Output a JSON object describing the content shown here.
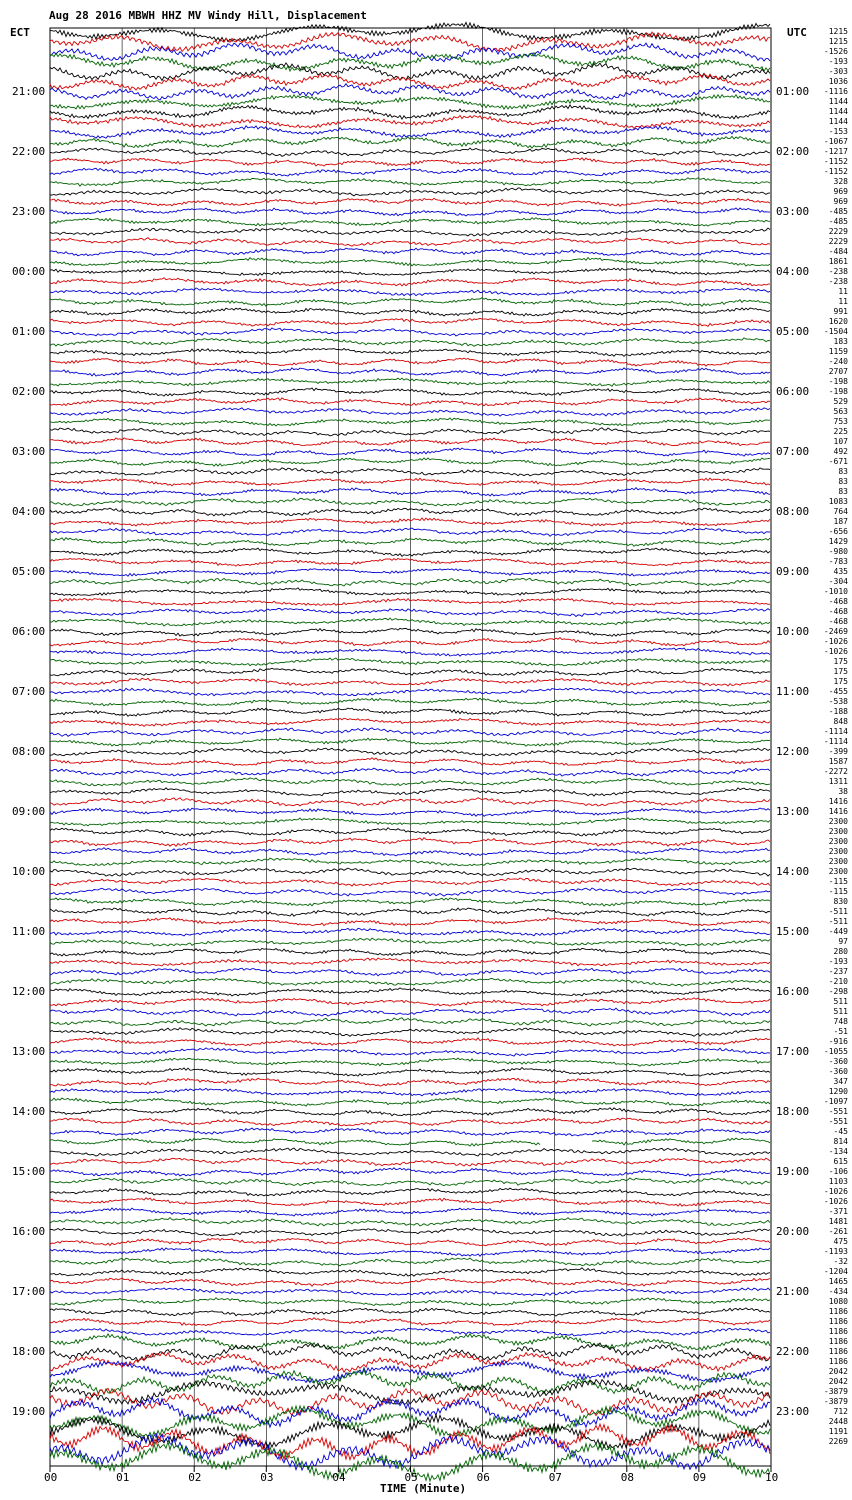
{
  "title": "Aug 28 2016 MBWH HHZ MV Windy Hill, Displacement",
  "left_timezone": "ECT",
  "right_timezone": "UTC",
  "x_axis_title": "TIME (Minute)",
  "colors": {
    "trace_cycle": [
      "#000000",
      "#d80000",
      "#0000d8",
      "#006400"
    ],
    "grid": "#000000"
  },
  "chart_data": {
    "type": "line",
    "title": "Aug 28 2016 MBWH HHZ MV Windy Hill, Displacement",
    "xlabel": "TIME (Minute)",
    "ylabel": "",
    "x_range": [
      0,
      10
    ],
    "x_ticks": [
      "00",
      "01",
      "02",
      "03",
      "04",
      "05",
      "06",
      "07",
      "08",
      "09",
      "10"
    ],
    "traces_per_hour": 6,
    "trace_count": 144,
    "data_gap_trace_index": 111,
    "left_hour_labels": [
      "21:00",
      "22:00",
      "23:00",
      "00:00",
      "01:00",
      "02:00",
      "03:00",
      "04:00",
      "05:00",
      "06:00",
      "07:00",
      "08:00",
      "09:00",
      "10:00",
      "11:00",
      "12:00",
      "13:00",
      "14:00",
      "15:00",
      "16:00",
      "17:00",
      "18:00",
      "19:00"
    ],
    "right_hour_labels": [
      "01:00",
      "02:00",
      "03:00",
      "04:00",
      "05:00",
      "06:00",
      "07:00",
      "08:00",
      "09:00",
      "10:00",
      "11:00",
      "12:00",
      "13:00",
      "14:00",
      "15:00",
      "16:00",
      "17:00",
      "18:00",
      "19:00",
      "20:00",
      "21:00",
      "22:00",
      "23:00"
    ],
    "right_values": [
      "1215",
      "1215",
      "-1526",
      "-193",
      "-303",
      "1036",
      "-1116",
      "1144",
      "1144",
      "1144",
      "-153",
      "-1067",
      "-1217",
      "-1152",
      "-1152",
      "328",
      "969",
      "969",
      "-485",
      "-485",
      "2229",
      "2229",
      "-484",
      "1861",
      "-238",
      "-238",
      "11",
      "11",
      "991",
      "1620",
      "-1504",
      "183",
      "1159",
      "-240",
      "2707",
      "-198",
      "-198",
      "529",
      "563",
      "753",
      "225",
      "107",
      "492",
      "-671",
      "83",
      "83",
      "83",
      "1083",
      "764",
      "187",
      "-656",
      "1429",
      "-980",
      "-783",
      "435",
      "-304",
      "-1010",
      "-468",
      "-468",
      "-468",
      "-2469",
      "-1026",
      "-1026",
      "175",
      "175",
      "175",
      "-455",
      "-538",
      "-188",
      "848",
      "-1114",
      "-1114",
      "-399",
      "1587",
      "-2272",
      "1311",
      "38",
      "1416",
      "1416",
      "2300",
      "2300",
      "2300",
      "2300",
      "2300",
      "2300",
      "-115",
      "-115",
      "830",
      "-511",
      "-511",
      "-449",
      "97",
      "280",
      "-193",
      "-237",
      "-210",
      "-298",
      "511",
      "511",
      "748",
      "-51",
      "-916",
      "-1055",
      "-360",
      "-360",
      "347",
      "1290",
      "-1097",
      "-551",
      "-551",
      "-45",
      "814",
      "-134",
      "615",
      "-106",
      "1103",
      "-1026",
      "-1026",
      "-371",
      "1481",
      "-261",
      "475",
      "-1193",
      "-32",
      "-1204",
      "1465",
      "-434",
      "1080",
      "1186",
      "1186",
      "1186",
      "1186",
      "1186",
      "1186",
      "2042",
      "2042",
      "-3879",
      "-3879",
      "712",
      "2448",
      "1191",
      "2269"
    ]
  }
}
